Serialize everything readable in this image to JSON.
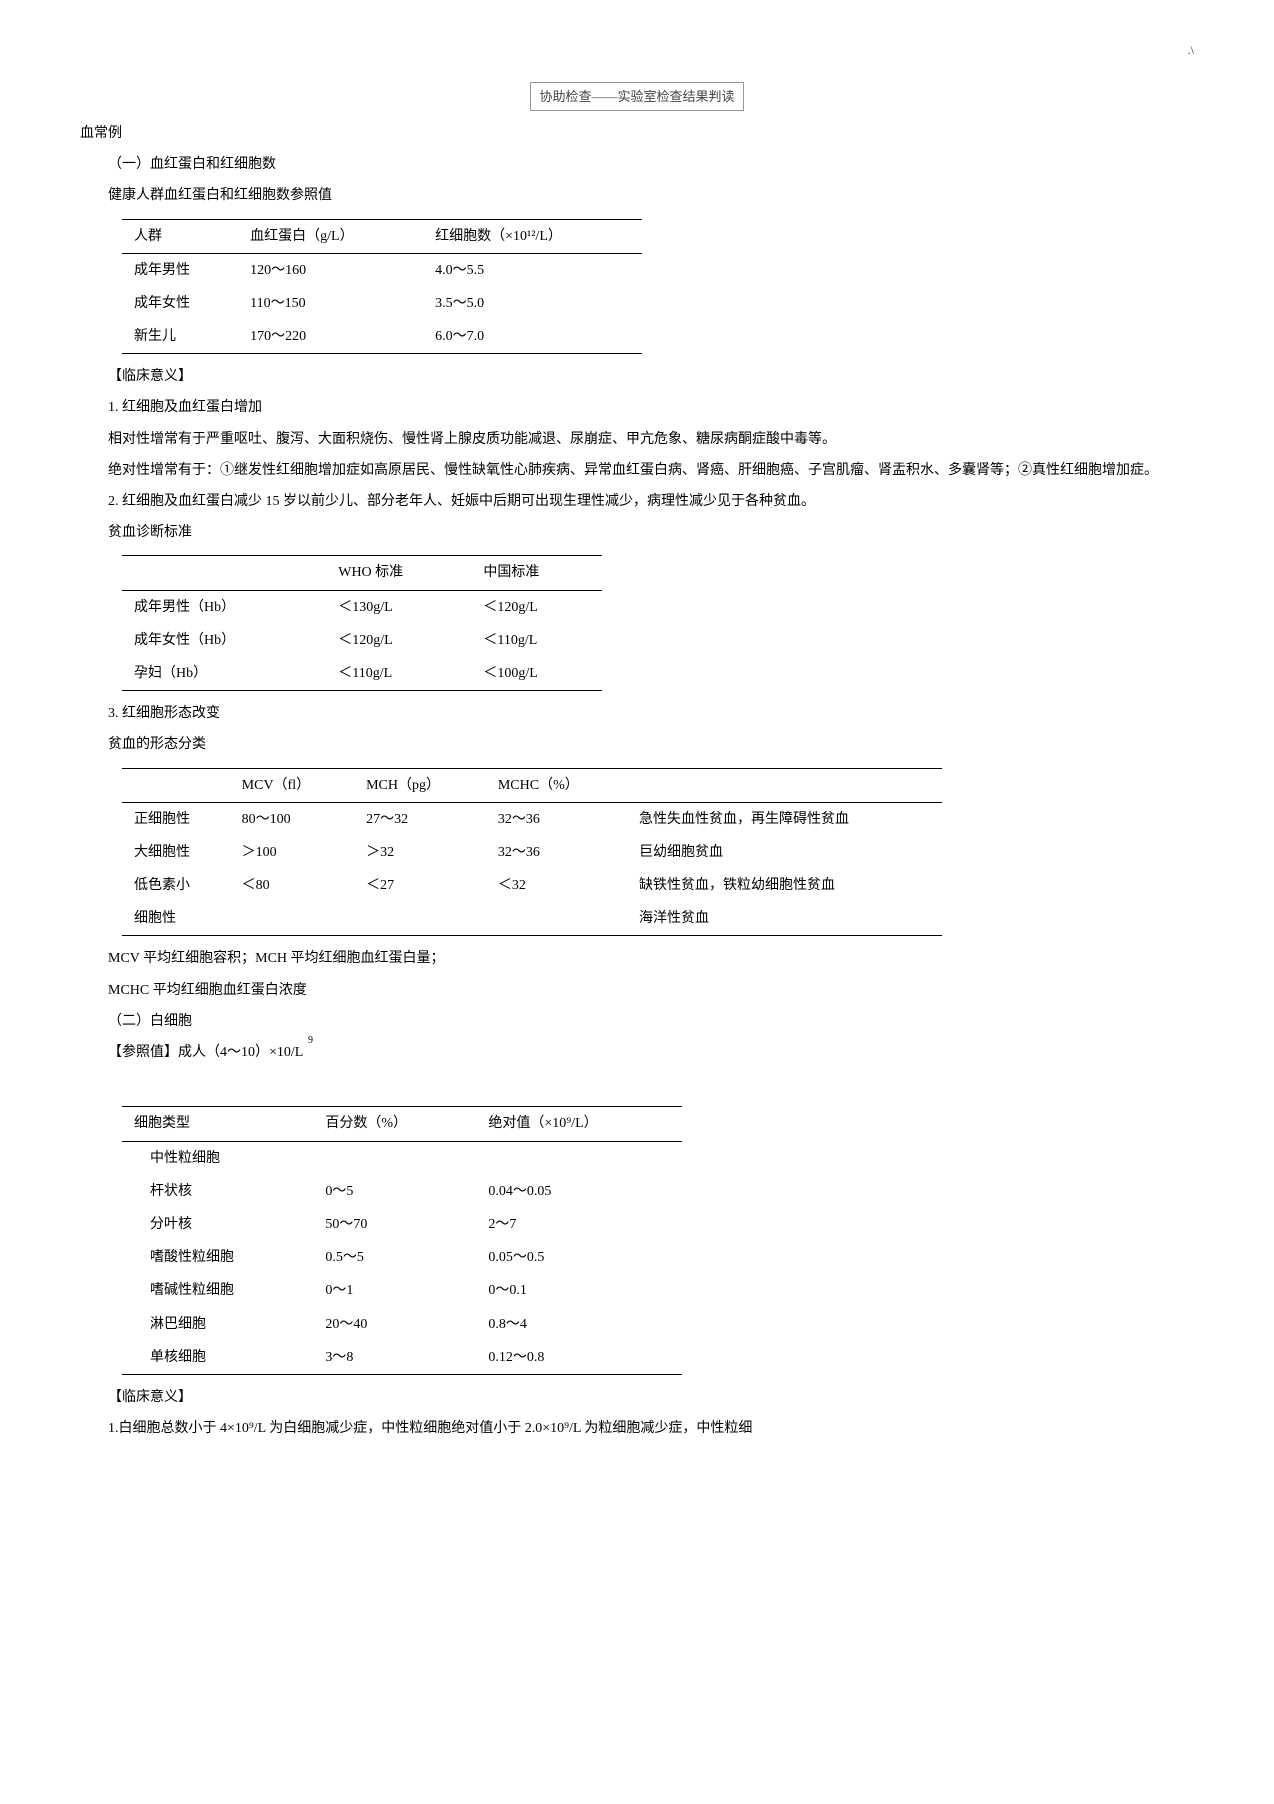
{
  "page_marker": ".\\",
  "header": "协助检查——实验室检查结果判读",
  "h_blood_routine": "血常例",
  "sec1_title": "（一）血红蛋白和红细胞数",
  "sec1_sub": "健康人群血红蛋白和红细胞数参照值",
  "table1": {
    "headers": [
      "人群",
      "血红蛋白（g/L）",
      "红细胞数（×10¹²/L）"
    ],
    "rows": [
      [
        "成年男性",
        "120～160",
        "4.0～5.5"
      ],
      [
        "成年女性",
        "110～150",
        "3.5～5.0"
      ],
      [
        "新生儿",
        "170～220",
        "6.0～7.0"
      ]
    ]
  },
  "clin_sig_label": "【临床意义】",
  "p1_title": "1. 红细胞及血红蛋白增加",
  "p1_body1": "相对性增常有于严重呕吐、腹泻、大面积烧伤、慢性肾上腺皮质功能减退、尿崩症、甲亢危象、糖尿病酮症酸中毒等。",
  "p1_body2": "绝对性增常有于：①继发性红细胞增加症如高原居民、慢性缺氧性心肺疾病、异常血红蛋白病、肾癌、肝细胞癌、子宫肌瘤、肾盂积水、多囊肾等；②真性红细胞增加症。",
  "p2_title": "2. 红细胞及血红蛋白减少 15 岁以前少儿、部分老年人、妊娠中后期可出现生理性减少，病理性减少见于各种贫血。",
  "anemia_std": "贫血诊断标准",
  "table2": {
    "headers": [
      "",
      "WHO 标准",
      "中国标准"
    ],
    "rows": [
      [
        "成年男性（Hb）",
        "＜130g/L",
        "＜120g/L"
      ],
      [
        "成年女性（Hb）",
        "＜120g/L",
        "＜110g/L"
      ],
      [
        "孕妇（Hb）",
        "＜110g/L",
        "＜100g/L"
      ]
    ]
  },
  "p3_title": "3. 红细胞形态改变",
  "p3_sub": "贫血的形态分类",
  "table3": {
    "headers": [
      "",
      "MCV（fl）",
      "MCH（pg）",
      "MCHC（%）",
      ""
    ],
    "rows": [
      [
        "正细胞性",
        "80～100",
        "27～32",
        "32～36",
        "急性失血性贫血，再生障碍性贫血"
      ],
      [
        "大细胞性",
        "＞100",
        "＞32",
        "32～36",
        "巨幼细胞贫血"
      ],
      [
        "低色素小",
        "＜80",
        "＜27",
        "＜32",
        "缺铁性贫血，铁粒幼细胞性贫血"
      ],
      [
        "细胞性",
        "",
        "",
        "",
        "海洋性贫血"
      ]
    ]
  },
  "mcv_note1": "MCV 平均红细胞容积；MCH 平均红细胞血红蛋白量；",
  "mcv_note2": "MCHC 平均红细胞血红蛋白浓度",
  "sec2_title": "（二）白细胞",
  "ref_label": "【参照值】成人（4～10）×10/L",
  "ref_sup": "9",
  "table4": {
    "headers": [
      "细胞类型",
      "百分数（%）",
      "绝对值（×10⁹/L）"
    ],
    "rows": [
      [
        "中性粒细胞",
        "",
        ""
      ],
      [
        "杆状核",
        "0～5",
        "0.04～0.05"
      ],
      [
        "分叶核",
        "50～70",
        "2～7"
      ],
      [
        "嗜酸性粒细胞",
        "0.5～5",
        "0.05～0.5"
      ],
      [
        "嗜碱性粒细胞",
        "0～1",
        "0～0.1"
      ],
      [
        "淋巴细胞",
        "20～40",
        "0.8～4"
      ],
      [
        "单核细胞",
        "3～8",
        "0.12～0.8"
      ]
    ]
  },
  "clin_sig_label2": "【临床意义】",
  "p_wbc": "1.白细胞总数小于 4×10⁹/L 为白细胞减少症，中性粒细胞绝对值小于 2.0×10⁹/L 为粒细胞减少症，中性粒细"
}
